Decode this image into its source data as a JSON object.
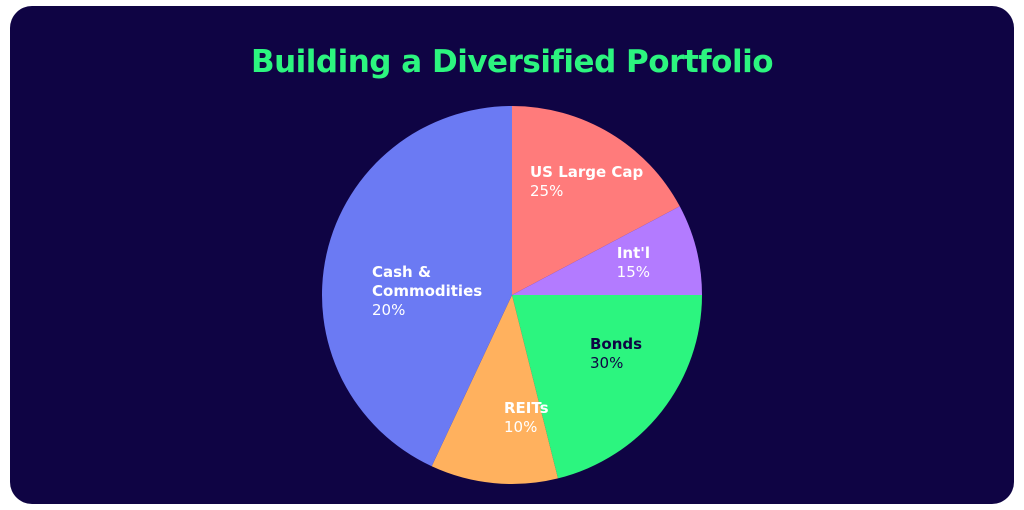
{
  "chart_data": {
    "type": "pie",
    "title": "Building a Diversified Portfolio",
    "slices": [
      {
        "name": "US Large Cap",
        "value_label": "25%",
        "value": 25,
        "color": "#ff7b7b",
        "text_color": "#ffffff"
      },
      {
        "name": "Int'l",
        "value_label": "15%",
        "value": 15,
        "color": "#b37bff",
        "text_color": "#ffffff"
      },
      {
        "name": "Bonds",
        "value_label": "30%",
        "value": 30,
        "color": "#2cf57f",
        "text_color": "#0f0444"
      },
      {
        "name": "REITs",
        "value_label": "10%",
        "value": 10,
        "color": "#ffb15e",
        "text_color": "#ffffff"
      },
      {
        "name": "Cash & Commodities",
        "value_label": "20%",
        "value": 20,
        "color": "#6b7af3",
        "text_color": "#ffffff"
      }
    ]
  },
  "colors": {
    "background": "#0f0444",
    "title": "#2cf57f"
  }
}
